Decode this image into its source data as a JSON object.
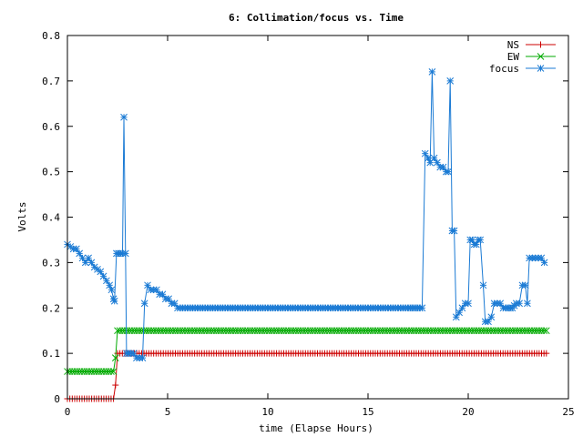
{
  "chart_data": {
    "type": "line",
    "title": "6: Collimation/focus vs. Time",
    "xlabel": "time (Elapse Hours)",
    "ylabel": "Volts",
    "xlim": [
      0,
      25
    ],
    "ylim": [
      0,
      0.8
    ],
    "x_ticks": [
      0,
      5,
      10,
      15,
      20,
      25
    ],
    "y_ticks": [
      0,
      0.1,
      0.2,
      0.3,
      0.4,
      0.5,
      0.6,
      0.7,
      0.8
    ],
    "x_tick_labels": [
      "0",
      "5",
      "10",
      "15",
      "20",
      "25"
    ],
    "y_tick_labels": [
      "0",
      "0.1",
      "0.2",
      "0.3",
      "0.4",
      "0.5",
      "0.6",
      "0.7",
      "0.8"
    ],
    "grid": false,
    "legend_position": "top-right",
    "series": [
      {
        "name": "NS",
        "color": "#cc0000",
        "marker": "plus",
        "points": [
          [
            0,
            0
          ],
          [
            2.3,
            0
          ],
          [
            2.4,
            0.03
          ],
          [
            2.5,
            0.1
          ],
          [
            23.9,
            0.1
          ]
        ]
      },
      {
        "name": "EW",
        "color": "#00aa00",
        "marker": "cross",
        "points": [
          [
            0,
            0.06
          ],
          [
            2.3,
            0.06
          ],
          [
            2.4,
            0.09
          ],
          [
            2.5,
            0.15
          ],
          [
            23.9,
            0.15
          ]
        ]
      },
      {
        "name": "focus",
        "color": "#1a7ad4",
        "marker": "star",
        "points": [
          [
            0,
            0.34
          ],
          [
            0.15,
            0.335
          ],
          [
            0.3,
            0.33
          ],
          [
            0.45,
            0.33
          ],
          [
            0.6,
            0.32
          ],
          [
            0.75,
            0.31
          ],
          [
            0.9,
            0.3
          ],
          [
            1.05,
            0.31
          ],
          [
            1.2,
            0.3
          ],
          [
            1.35,
            0.29
          ],
          [
            1.5,
            0.285
          ],
          [
            1.65,
            0.28
          ],
          [
            1.8,
            0.27
          ],
          [
            1.95,
            0.26
          ],
          [
            2.1,
            0.25
          ],
          [
            2.2,
            0.24
          ],
          [
            2.3,
            0.22
          ],
          [
            2.35,
            0.215
          ],
          [
            2.45,
            0.32
          ],
          [
            2.55,
            0.32
          ],
          [
            2.65,
            0.32
          ],
          [
            2.75,
            0.32
          ],
          [
            2.82,
            0.62
          ],
          [
            2.9,
            0.32
          ],
          [
            2.95,
            0.1
          ],
          [
            3.05,
            0.1
          ],
          [
            3.15,
            0.1
          ],
          [
            3.3,
            0.1
          ],
          [
            3.45,
            0.09
          ],
          [
            3.6,
            0.09
          ],
          [
            3.75,
            0.09
          ],
          [
            3.85,
            0.21
          ],
          [
            4.0,
            0.25
          ],
          [
            4.15,
            0.24
          ],
          [
            4.3,
            0.24
          ],
          [
            4.45,
            0.24
          ],
          [
            4.6,
            0.23
          ],
          [
            4.75,
            0.23
          ],
          [
            4.9,
            0.22
          ],
          [
            5.05,
            0.22
          ],
          [
            5.2,
            0.21
          ],
          [
            5.35,
            0.21
          ],
          [
            5.5,
            0.2
          ],
          [
            6,
            0.2
          ],
          [
            7,
            0.2
          ],
          [
            8,
            0.2
          ],
          [
            9,
            0.2
          ],
          [
            10,
            0.2
          ],
          [
            11,
            0.2
          ],
          [
            12,
            0.2
          ],
          [
            13,
            0.2
          ],
          [
            14,
            0.2
          ],
          [
            15,
            0.2
          ],
          [
            16,
            0.2
          ],
          [
            17,
            0.2
          ],
          [
            17.7,
            0.2
          ],
          [
            17.85,
            0.54
          ],
          [
            18.0,
            0.53
          ],
          [
            18.1,
            0.52
          ],
          [
            18.2,
            0.72
          ],
          [
            18.3,
            0.53
          ],
          [
            18.45,
            0.52
          ],
          [
            18.6,
            0.51
          ],
          [
            18.75,
            0.51
          ],
          [
            18.9,
            0.5
          ],
          [
            19.0,
            0.5
          ],
          [
            19.1,
            0.7
          ],
          [
            19.2,
            0.37
          ],
          [
            19.3,
            0.37
          ],
          [
            19.4,
            0.18
          ],
          [
            19.55,
            0.19
          ],
          [
            19.7,
            0.2
          ],
          [
            19.85,
            0.21
          ],
          [
            20.0,
            0.21
          ],
          [
            20.1,
            0.35
          ],
          [
            20.2,
            0.35
          ],
          [
            20.3,
            0.34
          ],
          [
            20.4,
            0.34
          ],
          [
            20.5,
            0.35
          ],
          [
            20.6,
            0.35
          ],
          [
            20.75,
            0.25
          ],
          [
            20.85,
            0.17
          ],
          [
            21.0,
            0.17
          ],
          [
            21.15,
            0.18
          ],
          [
            21.3,
            0.21
          ],
          [
            21.45,
            0.21
          ],
          [
            21.6,
            0.21
          ],
          [
            21.75,
            0.2
          ],
          [
            22.0,
            0.2
          ],
          [
            22.2,
            0.2
          ],
          [
            22.4,
            0.21
          ],
          [
            22.55,
            0.21
          ],
          [
            22.7,
            0.25
          ],
          [
            22.85,
            0.25
          ],
          [
            22.95,
            0.21
          ],
          [
            23.05,
            0.31
          ],
          [
            23.2,
            0.31
          ],
          [
            23.35,
            0.31
          ],
          [
            23.5,
            0.31
          ],
          [
            23.65,
            0.31
          ],
          [
            23.8,
            0.3
          ]
        ]
      }
    ]
  }
}
